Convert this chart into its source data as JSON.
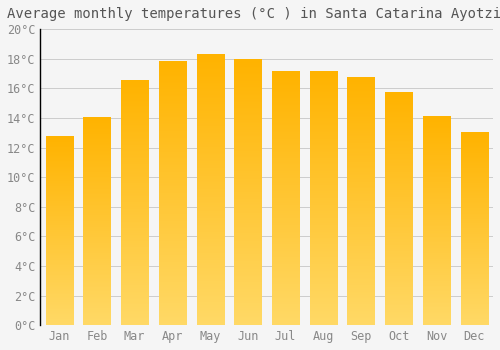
{
  "title": "Average monthly temperatures (°C ) in Santa Catarina Ayotzingo",
  "months": [
    "Jan",
    "Feb",
    "Mar",
    "Apr",
    "May",
    "Jun",
    "Jul",
    "Aug",
    "Sep",
    "Oct",
    "Nov",
    "Dec"
  ],
  "temperatures": [
    12.7,
    14.0,
    16.5,
    17.8,
    18.3,
    17.9,
    17.1,
    17.1,
    16.7,
    15.7,
    14.1,
    13.0
  ],
  "bar_color": "#FFA500",
  "bar_edge_color": "#E08000",
  "background_color": "#F5F5F5",
  "grid_color": "#CCCCCC",
  "text_color": "#888888",
  "title_color": "#555555",
  "spine_color": "#000000",
  "ylim": [
    0,
    20
  ],
  "ytick_step": 2,
  "title_fontsize": 10,
  "tick_fontsize": 8.5
}
